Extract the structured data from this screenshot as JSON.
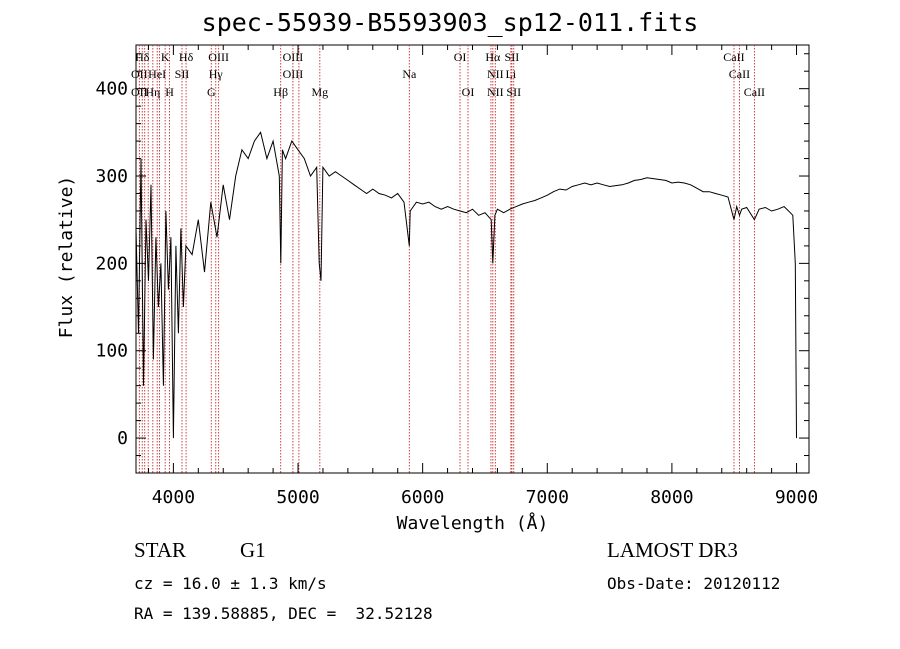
{
  "chart_data": {
    "type": "line",
    "title": "spec-55939-B5593903_sp12-011.fits",
    "xlabel": "Wavelength (Å)",
    "ylabel": "Flux (relative)",
    "xlim": [
      3700,
      9100
    ],
    "ylim": [
      -40,
      450
    ],
    "x_ticks": [
      4000,
      5000,
      6000,
      7000,
      8000,
      9000
    ],
    "y_ticks": [
      0,
      100,
      200,
      300,
      400
    ],
    "series": [
      {
        "name": "spectrum",
        "x": [
          3700,
          3720,
          3740,
          3760,
          3780,
          3800,
          3820,
          3840,
          3860,
          3880,
          3900,
          3920,
          3940,
          3960,
          3980,
          4000,
          4020,
          4040,
          4060,
          4080,
          4100,
          4150,
          4200,
          4250,
          4300,
          4350,
          4400,
          4450,
          4500,
          4550,
          4600,
          4650,
          4700,
          4750,
          4800,
          4850,
          4862,
          4875,
          4900,
          4950,
          5000,
          5050,
          5100,
          5150,
          5170,
          5184,
          5200,
          5250,
          5300,
          5350,
          5400,
          5450,
          5500,
          5550,
          5600,
          5650,
          5700,
          5750,
          5800,
          5850,
          5893,
          5900,
          5950,
          6000,
          6050,
          6100,
          6150,
          6200,
          6250,
          6300,
          6350,
          6400,
          6450,
          6500,
          6550,
          6563,
          6580,
          6600,
          6650,
          6700,
          6750,
          6800,
          6850,
          6900,
          6950,
          7000,
          7050,
          7100,
          7150,
          7200,
          7250,
          7300,
          7350,
          7400,
          7450,
          7500,
          7550,
          7600,
          7650,
          7700,
          7750,
          7800,
          7850,
          7900,
          7950,
          8000,
          8050,
          8100,
          8150,
          8200,
          8250,
          8300,
          8350,
          8400,
          8450,
          8498,
          8520,
          8542,
          8560,
          8600,
          8662,
          8700,
          8750,
          8800,
          8850,
          8900,
          8950,
          8970,
          8990,
          9000
        ],
        "y": [
          240,
          120,
          320,
          60,
          250,
          180,
          290,
          90,
          230,
          150,
          200,
          60,
          260,
          170,
          230,
          0,
          220,
          120,
          240,
          150,
          220,
          210,
          250,
          190,
          270,
          230,
          290,
          250,
          300,
          330,
          320,
          340,
          350,
          320,
          340,
          300,
          200,
          330,
          320,
          340,
          330,
          320,
          300,
          310,
          200,
          180,
          310,
          300,
          305,
          300,
          295,
          290,
          285,
          280,
          285,
          280,
          278,
          275,
          280,
          270,
          220,
          260,
          270,
          268,
          270,
          265,
          262,
          265,
          262,
          260,
          258,
          262,
          255,
          258,
          250,
          200,
          255,
          262,
          258,
          262,
          265,
          268,
          270,
          272,
          275,
          278,
          282,
          285,
          284,
          288,
          290,
          292,
          290,
          292,
          290,
          288,
          289,
          290,
          292,
          295,
          296,
          298,
          297,
          296,
          295,
          292,
          293,
          292,
          290,
          286,
          282,
          282,
          280,
          278,
          276,
          250,
          265,
          255,
          262,
          264,
          250,
          262,
          264,
          260,
          262,
          265,
          258,
          255,
          200,
          0
        ]
      }
    ],
    "line_labels": [
      {
        "label": "Hδ",
        "x": 3750,
        "row": 1
      },
      {
        "label": "K",
        "x": 3934,
        "row": 1
      },
      {
        "label": "Hδ",
        "x": 4102,
        "row": 1
      },
      {
        "label": "OIII",
        "x": 4363,
        "row": 1
      },
      {
        "label": "OIII",
        "x": 4959,
        "row": 1
      },
      {
        "label": "OI",
        "x": 6300,
        "row": 1
      },
      {
        "label": "Hα",
        "x": 6563,
        "row": 1
      },
      {
        "label": "SII",
        "x": 6716,
        "row": 1
      },
      {
        "label": "CaII",
        "x": 8498,
        "row": 1
      },
      {
        "label": "OII",
        "x": 3727,
        "row": 2
      },
      {
        "label": "HeI",
        "x": 3870,
        "row": 2
      },
      {
        "label": "SII",
        "x": 4069,
        "row": 2
      },
      {
        "label": "Hγ",
        "x": 4340,
        "row": 2
      },
      {
        "label": "OIII",
        "x": 4959,
        "row": 2
      },
      {
        "label": "Na",
        "x": 5893,
        "row": 2
      },
      {
        "label": "NII",
        "x": 6583,
        "row": 2
      },
      {
        "label": "Li",
        "x": 6708,
        "row": 2
      },
      {
        "label": "CaII",
        "x": 8542,
        "row": 2
      },
      {
        "label": "OII",
        "x": 3727,
        "row": 3
      },
      {
        "label": "Hη",
        "x": 3835,
        "row": 3
      },
      {
        "label": "H",
        "x": 3969,
        "row": 3
      },
      {
        "label": "G",
        "x": 4304,
        "row": 3
      },
      {
        "label": "Hβ",
        "x": 4861,
        "row": 3
      },
      {
        "label": "Mg",
        "x": 5175,
        "row": 3
      },
      {
        "label": "OI",
        "x": 6364,
        "row": 3
      },
      {
        "label": "NII",
        "x": 6583,
        "row": 3
      },
      {
        "label": "SII",
        "x": 6731,
        "row": 3
      },
      {
        "label": "CaII",
        "x": 8662,
        "row": 3
      }
    ],
    "line_positions": [
      3727,
      3750,
      3770,
      3798,
      3835,
      3870,
      3889,
      3934,
      3969,
      4069,
      4102,
      4304,
      4340,
      4363,
      4861,
      4959,
      5007,
      5175,
      5893,
      6300,
      6364,
      6548,
      6563,
      6583,
      6708,
      6716,
      6731,
      8498,
      8542,
      8662
    ],
    "line_color": "#cc2a2a",
    "spectrum_color": "#000000"
  },
  "info": {
    "object_class": "STAR",
    "subclass": "G1",
    "survey": "LAMOST DR3",
    "cz": "cz = 16.0 ± 1.3 km/s",
    "obs_date": "Obs-Date: 20120112",
    "coords": "RA = 139.58885, DEC =  32.52128"
  }
}
